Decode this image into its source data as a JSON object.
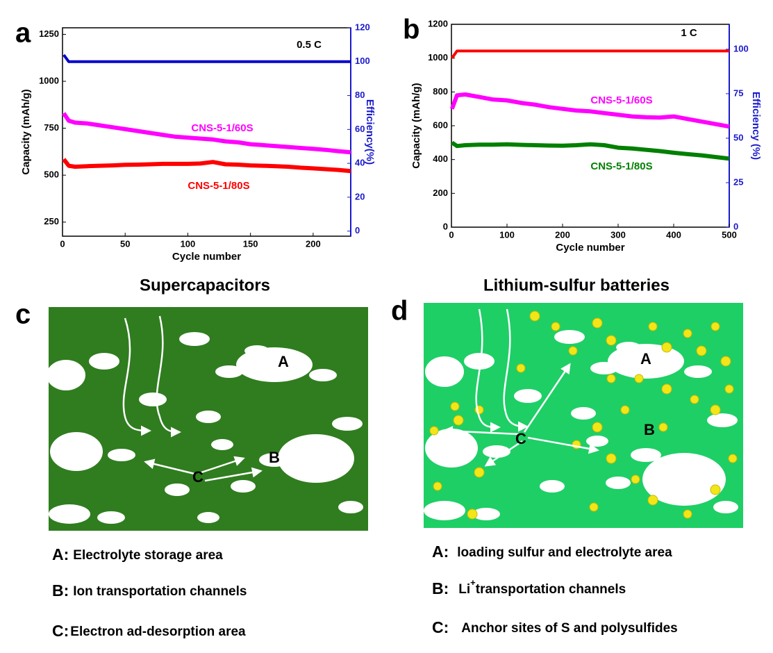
{
  "chart_data": [
    {
      "type": "line",
      "panel": "a",
      "annotation": "0.5 C",
      "xlabel": "Cycle number",
      "ylabel": "Capacity (mAh/g)",
      "y2label": "Efficiency(%)",
      "xlim": [
        0,
        230
      ],
      "xticks": [
        0,
        50,
        100,
        150,
        200
      ],
      "ylim": [
        175,
        1285
      ],
      "yticks": [
        250,
        500,
        750,
        1000,
        1250
      ],
      "y2lim": [
        -3,
        120
      ],
      "y2ticks": [
        0,
        20,
        40,
        60,
        80,
        100,
        120
      ],
      "x": [
        1,
        5,
        10,
        20,
        30,
        40,
        50,
        60,
        70,
        80,
        90,
        100,
        110,
        120,
        130,
        140,
        150,
        160,
        170,
        180,
        190,
        200,
        210,
        220,
        230
      ],
      "series": [
        {
          "name": "CNS-5-1/60S",
          "color": "#ff00ff",
          "values": [
            830,
            790,
            780,
            775,
            765,
            755,
            745,
            735,
            725,
            715,
            705,
            700,
            695,
            690,
            680,
            675,
            665,
            660,
            655,
            650,
            645,
            640,
            635,
            628,
            622
          ]
        },
        {
          "name": "CNS-5-1/80S",
          "color": "#ff0000",
          "values": [
            585,
            550,
            545,
            548,
            550,
            552,
            555,
            556,
            558,
            560,
            560,
            560,
            562,
            570,
            558,
            556,
            552,
            550,
            548,
            545,
            540,
            536,
            532,
            528,
            522
          ]
        },
        {
          "color": "#0000cc",
          "axis": "y2",
          "values": [
            104,
            100,
            100,
            100,
            100,
            100,
            100,
            100,
            100,
            100,
            100,
            100,
            100,
            100,
            100,
            100,
            100,
            100,
            100,
            100,
            100,
            100,
            100,
            100,
            100
          ]
        }
      ]
    },
    {
      "type": "line",
      "panel": "b",
      "annotation": "1 C",
      "xlabel": "Cycle number",
      "ylabel": "Capacity (mAh/g)",
      "y2label": "Efficiency (%)",
      "xlim": [
        0,
        500
      ],
      "xticks": [
        0,
        100,
        200,
        300,
        400,
        500
      ],
      "ylim": [
        0,
        1200
      ],
      "yticks": [
        0,
        200,
        400,
        600,
        800,
        1000,
        1200
      ],
      "y2lim": [
        0,
        114
      ],
      "y2ticks": [
        0,
        25,
        50,
        75,
        100
      ],
      "x": [
        1,
        10,
        25,
        50,
        75,
        100,
        125,
        150,
        175,
        200,
        225,
        250,
        275,
        300,
        325,
        350,
        375,
        400,
        425,
        450,
        475,
        500
      ],
      "series": [
        {
          "name": "CNS-5-1/60S",
          "color": "#ff00ff",
          "values": [
            700,
            780,
            785,
            770,
            755,
            750,
            735,
            725,
            710,
            700,
            690,
            685,
            675,
            665,
            655,
            650,
            648,
            655,
            640,
            625,
            610,
            595
          ]
        },
        {
          "name": "CNS-5-1/80S",
          "color": "#008000",
          "values": [
            500,
            480,
            485,
            488,
            488,
            490,
            487,
            485,
            483,
            482,
            485,
            490,
            485,
            470,
            465,
            458,
            450,
            440,
            432,
            425,
            415,
            405
          ]
        },
        {
          "color": "#ff0000",
          "axis": "y2",
          "values": [
            95,
            99,
            99,
            99,
            99,
            99,
            99,
            99,
            99,
            99,
            99,
            99,
            99,
            99,
            99,
            99,
            99,
            99,
            99,
            99,
            99,
            99
          ]
        }
      ]
    }
  ],
  "panels": [
    {
      "letter": "c",
      "title": "Supercapacitors",
      "labels": [
        "A",
        "B",
        "C"
      ],
      "legend": [
        {
          "key": "A:",
          "text": "Electrolyte storage area"
        },
        {
          "key": "B:",
          "text": "Ion transportation channels"
        },
        {
          "key": "C:",
          "text": "Electron ad-desorption area"
        }
      ]
    },
    {
      "letter": "d",
      "title": "Lithium-sulfur batteries",
      "labels": [
        "A",
        "B",
        "C"
      ],
      "legend": [
        {
          "key": "A:",
          "text": "loading sulfur and electrolyte area"
        },
        {
          "key": "B:",
          "text": "Li",
          "sup": "+",
          "rest": "transportation channels"
        },
        {
          "key": "C:",
          "text": "Anchor sites of S and polysulfides"
        }
      ]
    }
  ]
}
